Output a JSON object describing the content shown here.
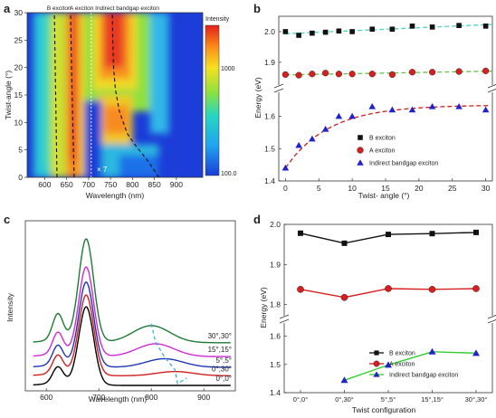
{
  "chart_data": [
    {
      "panel": "a",
      "type": "heatmap",
      "xlabel": "Wavelength (nm)",
      "ylabel": "Twist-angle (°)",
      "xlim": [
        560,
        960
      ],
      "ylim": [
        0,
        30
      ],
      "xticks": [
        600,
        650,
        700,
        750,
        800,
        850,
        900
      ],
      "yticks": [
        0,
        5,
        10,
        15,
        20,
        25,
        30
      ],
      "top_labels": [
        "B exciton",
        "A exciton",
        "Indirect bandgap exciton"
      ],
      "colorbar": {
        "label": "Intensity",
        "ticks": [
          "1000",
          "100.0"
        ],
        "scale": "log"
      },
      "annotation": "× 7",
      "guide_lines": {
        "b_exciton": [
          [
            628,
            0
          ],
          [
            626,
            10
          ],
          [
            624,
            20
          ],
          [
            622,
            30
          ]
        ],
        "a_exciton": [
          [
            667,
            0
          ],
          [
            664,
            10
          ],
          [
            661,
            20
          ],
          [
            659,
            30
          ]
        ],
        "indirect": [
          [
            860,
            0
          ],
          [
            835,
            3
          ],
          [
            805,
            6
          ],
          [
            788,
            8
          ],
          [
            770,
            12
          ],
          [
            761,
            16
          ],
          [
            757,
            20
          ],
          [
            755,
            25
          ],
          [
            754,
            30
          ]
        ]
      }
    },
    {
      "panel": "b",
      "type": "scatter",
      "xlabel": "Twist- angle (°)",
      "ylabel": "Energy (eV)",
      "xlim": [
        -1,
        31
      ],
      "xticks": [
        0,
        5,
        10,
        15,
        20,
        25,
        30
      ],
      "yticks_upper": [
        1.9,
        2.0
      ],
      "yticks_lower": [
        1.4,
        1.5,
        1.6
      ],
      "axis_break": [
        1.68,
        1.82
      ],
      "legend_position": "bottom-right",
      "series": [
        {
          "name": "B exciton",
          "marker": "square",
          "color": "#111111",
          "fit_color": "#4fd1c5",
          "x": [
            0,
            2,
            4,
            6,
            8,
            10,
            13,
            16,
            19,
            22,
            26,
            30
          ],
          "y": [
            2.0,
            1.988,
            1.995,
            1.998,
            2.002,
            2.0,
            2.008,
            2.008,
            2.018,
            2.015,
            2.02,
            2.018
          ]
        },
        {
          "name": "A exciton",
          "marker": "circle",
          "color": "#d62020",
          "fit_color": "#65c04a",
          "x": [
            0,
            2,
            4,
            6,
            8,
            10,
            13,
            16,
            19,
            22,
            26,
            30
          ],
          "y": [
            1.86,
            1.858,
            1.862,
            1.865,
            1.862,
            1.862,
            1.862,
            1.86,
            1.868,
            1.868,
            1.87,
            1.872
          ]
        },
        {
          "name": "Indirect bandgap exciton",
          "marker": "triangle",
          "color": "#2222cc",
          "fit_color": "#cc2020",
          "x": [
            0,
            2,
            4,
            6,
            8,
            10,
            13,
            16,
            19,
            22,
            26,
            30
          ],
          "y": [
            1.44,
            1.51,
            1.53,
            1.56,
            1.6,
            1.6,
            1.63,
            1.62,
            1.62,
            1.63,
            1.63,
            1.62
          ]
        }
      ]
    },
    {
      "panel": "c",
      "type": "line",
      "xlabel": "Wavelength (nm)",
      "ylabel": "Intensity",
      "xlim": [
        560,
        960
      ],
      "xticks": [
        600,
        700,
        800,
        900
      ],
      "curves": [
        {
          "name": "0°,0°",
          "color": "#000000",
          "offset": 0.0,
          "a": 0.72,
          "b": 0.15,
          "i": 0.0,
          "ic": 850
        },
        {
          "name": "0°,30°",
          "color": "#d21f1f",
          "offset": 0.09,
          "a": 0.74,
          "b": 0.17,
          "i": 0.04,
          "ic": 845
        },
        {
          "name": "5°,5°",
          "color": "#1f36b5",
          "offset": 0.17,
          "a": 0.78,
          "b": 0.18,
          "i": 0.08,
          "ic": 825
        },
        {
          "name": "15°,15°",
          "color": "#d02ad6",
          "offset": 0.27,
          "a": 0.82,
          "b": 0.2,
          "i": 0.12,
          "ic": 808
        },
        {
          "name": "30°,30°",
          "color": "#1e7a33",
          "offset": 0.4,
          "a": 0.95,
          "b": 0.24,
          "i": 0.16,
          "ic": 800
        }
      ]
    },
    {
      "panel": "d",
      "type": "line",
      "xlabel": "Twist configuration",
      "ylabel": "Energy (eV)",
      "categories": [
        "0°,0°",
        "0°,30°",
        "5°,5°",
        "15°,15°",
        "30°,30°"
      ],
      "yticks_upper": [
        1.8,
        1.9,
        2.0
      ],
      "yticks_lower": [
        1.4,
        1.5,
        1.6
      ],
      "axis_break": [
        1.65,
        1.77
      ],
      "legend_position": "bottom-right",
      "series": [
        {
          "name": "B exciton",
          "marker": "square",
          "color": "#111111",
          "line_color": "#111111",
          "values": [
            1.978,
            1.953,
            1.975,
            1.977,
            1.98
          ]
        },
        {
          "name": "A exciton",
          "marker": "circle",
          "color": "#d62020",
          "line_color": "#d62020",
          "values": [
            1.838,
            1.818,
            1.84,
            1.838,
            1.84
          ]
        },
        {
          "name": "Indirect bandgap exciton",
          "marker": "triangle",
          "color": "#2222cc",
          "line_color": "#33cc33",
          "values": [
            null,
            1.444,
            1.498,
            1.545,
            1.54
          ]
        }
      ]
    }
  ]
}
